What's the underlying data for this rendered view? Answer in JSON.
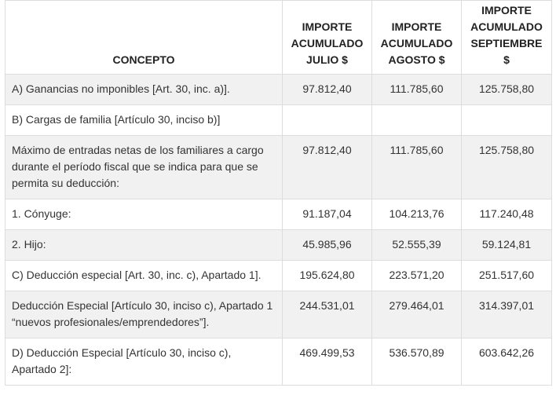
{
  "table": {
    "headers": {
      "concept": "CONCEPTO",
      "col1": [
        "IMPORTE",
        "ACUMULADO",
        "JULIO $"
      ],
      "col2": [
        "IMPORTE",
        "ACUMULADO",
        "AGOSTO $"
      ],
      "col3": [
        "IMPORTE",
        "ACUMULADO",
        "SEPTIEMBRE",
        "$"
      ]
    },
    "rows": [
      {
        "concept": "A) Ganancias no imponibles [Art. 30, inc. a)].",
        "julio": "97.812,40",
        "agosto": "111.785,60",
        "septiembre": "125.758,80"
      },
      {
        "concept": "B) Cargas de familia [Artículo 30, inciso b)]",
        "julio": "",
        "agosto": "",
        "septiembre": ""
      },
      {
        "concept": "Máximo de entradas netas de los familiares a cargo durante el período fiscal que se indica para que se permita su deducción:",
        "julio": "97.812,40",
        "agosto": "111.785,60",
        "septiembre": "125.758,80"
      },
      {
        "concept": "1. Cónyuge:",
        "julio": "91.187,04",
        "agosto": "104.213,76",
        "septiembre": "117.240,48"
      },
      {
        "concept": "2. Hijo:",
        "julio": "45.985,96",
        "agosto": "52.555,39",
        "septiembre": "59.124,81"
      },
      {
        "concept": "C) Deducción especial [Art. 30, inc. c), Apartado 1].",
        "julio": "195.624,80",
        "agosto": "223.571,20",
        "septiembre": "251.517,60"
      },
      {
        "concept": "Deducción Especial [Artículo 30, inciso c), Apartado 1 “nuevos profesionales/emprendedores”].",
        "julio": "244.531,01",
        "agosto": "279.464,01",
        "septiembre": "314.397,01"
      },
      {
        "concept": "D) Deducción Especial [Artículo 30, inciso c), Apartado 2]:",
        "julio": "469.499,53",
        "agosto": "536.570,89",
        "septiembre": "603.642,26"
      }
    ]
  }
}
